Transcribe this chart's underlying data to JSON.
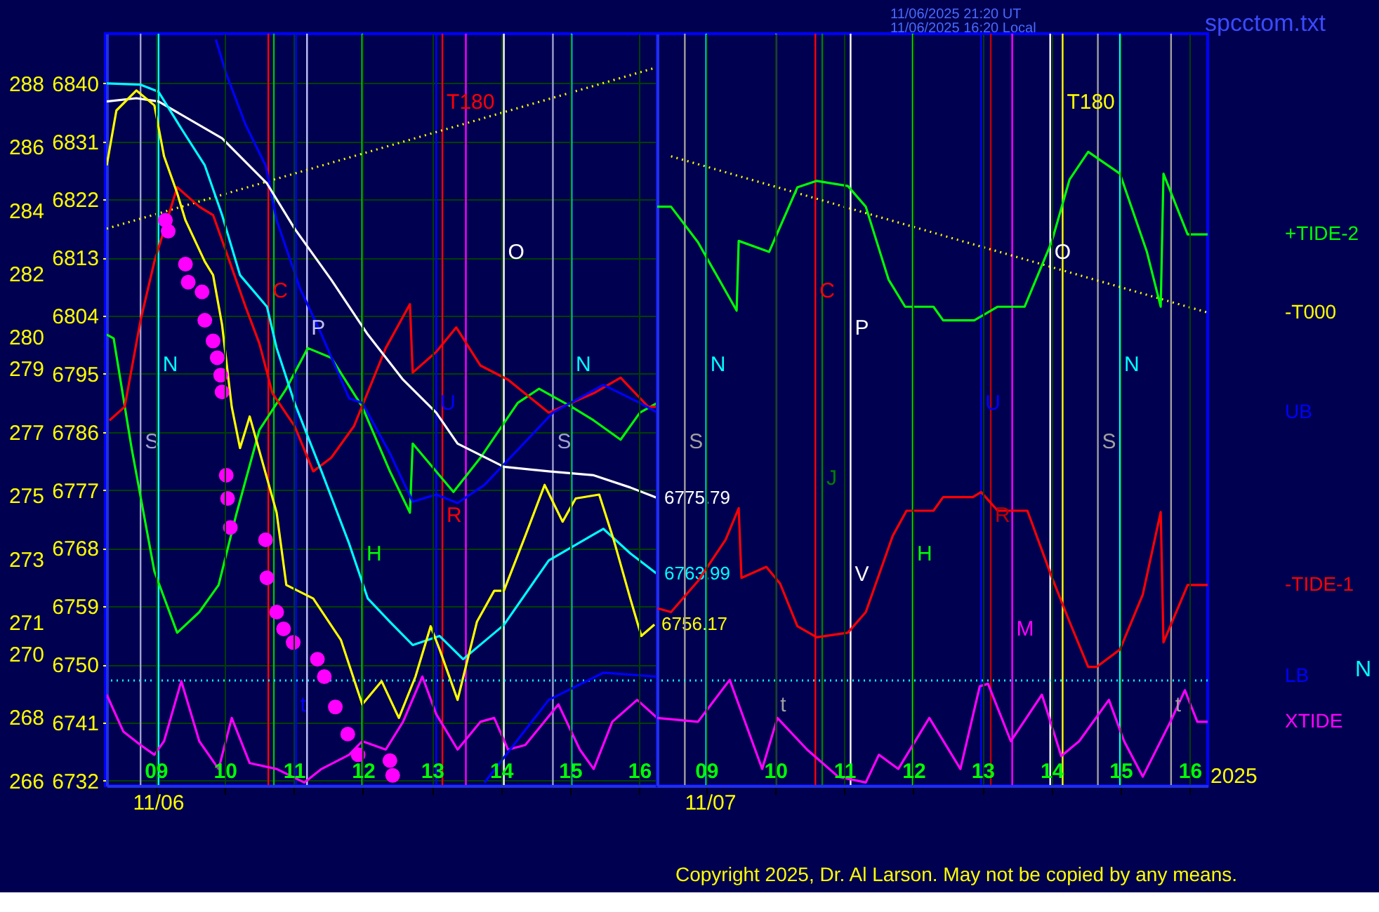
{
  "chart_data": [
    {
      "type": "line",
      "xlim": [
        8.29,
        16.26
      ],
      "ylim": [
        6731.2,
        6847.7
      ],
      "y2lim": [
        265.84,
        289.57
      ],
      "grid": true,
      "marker": "none",
      "xticks": [
        {
          "value": 9,
          "label": "09"
        },
        10,
        11,
        12,
        13,
        14,
        15,
        16
      ],
      "yticks": [
        6840,
        6831,
        6822,
        6813,
        6804,
        6795,
        6786,
        6777,
        6768,
        6759,
        6750,
        6741,
        6732
      ],
      "y2ticks": [
        288,
        286,
        284,
        282,
        280,
        279,
        277,
        275,
        273,
        271,
        270,
        268,
        266
      ],
      "series": [
        {
          "type": "line",
          "color": "#ffff00",
          "line_style": "dotted",
          "x": [
            8.29,
            16.26
          ],
          "values": [
            6817.5,
            6842.5
          ]
        },
        {
          "type": "line",
          "color": "#00ff00",
          "line_style": "solid",
          "x": [
            8.29,
            8.39,
            8.65,
            8.98,
            9.31,
            9.63,
            9.91,
            10.16,
            10.5,
            10.89,
            11.2,
            11.54,
            11.99,
            12.39,
            12.68,
            12.72,
            13.31,
            13.7,
            14.24,
            14.55,
            15.02,
            15.34,
            15.73,
            16.01,
            16.26
          ],
          "values": [
            6801.1,
            6800.5,
            6783.5,
            6764.4,
            6754.9,
            6758.1,
            6762.3,
            6773.0,
            6786.3,
            6792.7,
            6799.0,
            6797.5,
            6789.9,
            6779.9,
            6773.5,
            6784.2,
            6776.7,
            6782.0,
            6790.5,
            6792.7,
            6789.9,
            6787.8,
            6784.8,
            6789.0,
            6790.5
          ]
        },
        {
          "type": "line",
          "color": "#ff0000",
          "line_style": "solid",
          "x": [
            8.33,
            8.55,
            8.78,
            8.98,
            9.31,
            9.63,
            9.83,
            10.02,
            10.3,
            10.5,
            10.69,
            11.01,
            11.28,
            11.54,
            11.87,
            12.33,
            12.68,
            12.72,
            13.06,
            13.35,
            13.7,
            14.1,
            14.69,
            15.34,
            15.73,
            16.13,
            16.26
          ],
          "values": [
            6787.8,
            6789.9,
            6803.3,
            6812.4,
            6823.9,
            6820.9,
            6819.6,
            6813.9,
            6805.4,
            6799.7,
            6792.0,
            6786.9,
            6779.9,
            6782.0,
            6786.9,
            6799.0,
            6805.8,
            6795.2,
            6798.4,
            6802.2,
            6796.3,
            6794.1,
            6789.0,
            6792.0,
            6794.4,
            6789.9,
            6789.9
          ]
        },
        {
          "type": "line",
          "color": "#ff00ff",
          "line_style": "solid",
          "x": [
            8.29,
            8.53,
            8.78,
            8.98,
            9.12,
            9.37,
            9.63,
            9.91,
            10.1,
            10.36,
            10.75,
            11.15,
            11.4,
            11.8,
            11.99,
            12.33,
            12.58,
            12.86,
            13.06,
            13.37,
            13.7,
            13.9,
            14.1,
            14.35,
            14.83,
            15.14,
            15.34,
            15.61,
            15.97,
            16.26
          ],
          "values": [
            6745.3,
            6739.6,
            6737.5,
            6736.0,
            6738.1,
            6747.4,
            6738.1,
            6733.8,
            6741.7,
            6734.7,
            6733.8,
            6731.7,
            6733.8,
            6736.0,
            6738.1,
            6736.8,
            6741.1,
            6748.1,
            6742.3,
            6736.8,
            6741.1,
            6741.7,
            6736.8,
            6737.5,
            6743.8,
            6736.8,
            6733.8,
            6741.1,
            6744.5,
            6741.7
          ]
        },
        {
          "type": "line",
          "name": "UB",
          "color": "#0000ff",
          "line_style": "solid",
          "x": [
            9.87,
            10.02,
            10.3,
            10.59,
            10.75,
            11.09,
            11.4,
            11.8,
            11.99,
            12.39,
            12.72,
            13.06,
            13.37,
            13.76,
            14.75,
            15.48,
            16.01,
            16.26
          ],
          "values": [
            6846.8,
            6841.5,
            6833.6,
            6827.3,
            6818.8,
            6808.2,
            6801.1,
            6791.2,
            6790.5,
            6782.7,
            6775.2,
            6776.3,
            6775.0,
            6777.8,
            6789.0,
            6793.3,
            6790.5,
            6789.0
          ]
        },
        {
          "type": "line",
          "name": "LB",
          "color": "#0000ff",
          "line_style": "solid",
          "x": [
            13.76,
            14.69,
            15.48,
            16.26
          ],
          "values": [
            6731.7,
            6744.5,
            6748.7,
            6748.1
          ]
        },
        {
          "type": "line",
          "color": "#ffffff",
          "line_style": "solid",
          "x": [
            8.29,
            8.72,
            9.04,
            9.96,
            10.61,
            11.01,
            11.54,
            12.07,
            12.58,
            13.06,
            13.37,
            14.04,
            14.69,
            15.34,
            15.87,
            16.26
          ],
          "values": [
            6837.2,
            6837.7,
            6837.2,
            6831.5,
            6824.5,
            6817.5,
            6809.6,
            6801.1,
            6794.1,
            6789.0,
            6784.2,
            6780.6,
            6779.9,
            6779.3,
            6777.4,
            6775.79
          ],
          "value_labels": [
            null,
            null,
            null,
            null,
            null,
            null,
            null,
            null,
            null,
            null,
            null,
            null,
            null,
            null,
            null,
            "6775.79"
          ]
        },
        {
          "type": "line",
          "color": "#00ffff",
          "line_style": "solid",
          "x": [
            8.29,
            8.78,
            9.04,
            9.37,
            9.71,
            9.96,
            10.22,
            10.61,
            10.75,
            11.01,
            11.4,
            11.8,
            12.07,
            12.39,
            12.72,
            13.11,
            13.45,
            14.04,
            14.69,
            15.48,
            15.87,
            16.26
          ],
          "values": [
            6840.0,
            6839.8,
            6838.7,
            6833.0,
            6827.3,
            6819.6,
            6810.3,
            6805.4,
            6799.0,
            6790.5,
            6779.9,
            6768.7,
            6760.2,
            6756.6,
            6753.0,
            6754.4,
            6750.8,
            6756.1,
            6766.1,
            6771.0,
            6767.2,
            6763.99
          ],
          "value_labels": [
            null,
            null,
            null,
            null,
            null,
            null,
            null,
            null,
            null,
            null,
            null,
            null,
            null,
            null,
            null,
            null,
            null,
            null,
            null,
            null,
            null,
            "6763.99"
          ]
        },
        {
          "type": "line",
          "color": "#ffff00",
          "line_style": "solid",
          "x": [
            8.29,
            8.43,
            8.72,
            8.98,
            9.12,
            9.31,
            9.43,
            9.71,
            9.83,
            9.96,
            10.1,
            10.22,
            10.36,
            10.75,
            10.89,
            11.28,
            11.68,
            11.99,
            12.27,
            12.52,
            12.76,
            12.98,
            13.11,
            13.37,
            13.65,
            13.9,
            14.04,
            14.35,
            14.63,
            14.89,
            15.08,
            15.42,
            15.63,
            15.87,
            16.03,
            16.22
          ],
          "values": [
            6827.3,
            6835.8,
            6838.9,
            6836.6,
            6828.7,
            6823.0,
            6818.8,
            6812.4,
            6810.3,
            6802.6,
            6789.9,
            6783.5,
            6788.4,
            6773.5,
            6762.3,
            6760.2,
            6753.8,
            6743.8,
            6747.4,
            6741.7,
            6748.1,
            6755.9,
            6752.3,
            6744.5,
            6756.6,
            6761.4,
            6761.4,
            6769.9,
            6777.8,
            6772.1,
            6775.7,
            6776.3,
            6769.3,
            6760.2,
            6754.4,
            6756.17
          ],
          "value_labels": [
            null,
            null,
            null,
            null,
            null,
            null,
            null,
            null,
            null,
            null,
            null,
            null,
            null,
            null,
            null,
            null,
            null,
            null,
            null,
            null,
            null,
            null,
            null,
            null,
            null,
            null,
            null,
            null,
            null,
            null,
            null,
            null,
            null,
            null,
            null,
            "6756.17"
          ]
        },
        {
          "type": "scatter",
          "color": "#ff00ff",
          "marker": "circle",
          "x": [
            9.14,
            9.18,
            9.43,
            9.47,
            9.67,
            9.71,
            9.83,
            9.89,
            9.94,
            9.96,
            10.02,
            10.04,
            10.08,
            10.59,
            10.61,
            10.75,
            10.85,
            10.99,
            11.34,
            11.44,
            11.6,
            11.78,
            11.93,
            12.39,
            12.43
          ],
          "values": [
            6818.8,
            6817.1,
            6812.0,
            6809.2,
            6807.7,
            6803.3,
            6800.1,
            6797.5,
            6794.8,
            6792.2,
            6779.3,
            6775.7,
            6771.2,
            6769.3,
            6763.4,
            6758.1,
            6755.5,
            6753.4,
            6750.8,
            6748.1,
            6743.4,
            6739.2,
            6736.0,
            6735.1,
            6732.8
          ]
        }
      ],
      "ref_lines": [
        {
          "axis": "x",
          "value": 8.78,
          "color": "#a0a0d0"
        },
        {
          "axis": "x",
          "value": 9.04,
          "color": "#00ffff"
        },
        {
          "axis": "x",
          "value": 10.63,
          "color": "#ff0000"
        },
        {
          "axis": "x",
          "value": 10.71,
          "color": "#00c000"
        },
        {
          "axis": "x",
          "value": 11.03,
          "color": "#0000ff"
        },
        {
          "axis": "x",
          "value": 11.19,
          "color": "#c0c0ff"
        },
        {
          "axis": "x",
          "value": 11.99,
          "color": "#00ff00"
        },
        {
          "axis": "x",
          "value": 13.06,
          "color": "#0000ff"
        },
        {
          "axis": "x",
          "value": 13.15,
          "color": "#ff0000"
        },
        {
          "axis": "x",
          "value": 13.49,
          "color": "#ff00ff"
        },
        {
          "axis": "x",
          "value": 14.04,
          "color": "#ffffff"
        },
        {
          "axis": "x",
          "value": 14.75,
          "color": "#a0a0d0"
        },
        {
          "axis": "x",
          "value": 15.02,
          "color": "#00ffff"
        },
        {
          "axis": "y",
          "value": 6747.5,
          "color": "#00ffff",
          "line_style": "dotted"
        }
      ],
      "annotations": [
        {
          "text": "N",
          "x": 9.04,
          "y": 6796.5
        },
        {
          "text": "N",
          "x": 15.02,
          "y": 6796.5
        },
        {
          "text": "S",
          "x": 8.78,
          "y": 6784.6
        },
        {
          "text": "S",
          "x": 14.75,
          "y": 6784.6
        },
        {
          "text": "C",
          "x": 10.63,
          "y": 6807.9
        },
        {
          "text": "P",
          "x": 11.19,
          "y": 6802.2
        },
        {
          "text": "H",
          "x": 11.99,
          "y": 6767.2
        },
        {
          "text": "U",
          "x": 13.06,
          "y": 6790.5
        },
        {
          "text": "R",
          "x": 13.15,
          "y": 6773.1
        },
        {
          "text": "O",
          "x": 14.04,
          "y": 6813.9
        },
        {
          "text": "t",
          "x": 11.03,
          "y": 6743.8
        },
        {
          "text": "T180",
          "x": 13.15,
          "y": 6837.2
        },
        "11/06",
        "11/06/2025 21:20 UT",
        "11/06/2025 16:20 Local",
        "spcctom.txt",
        "Copyright 2025, Dr. Al Larson. May not be copied by any means."
      ]
    },
    {
      "type": "line",
      "xlim": [
        8.29,
        16.26
      ],
      "ylim": [
        6731.2,
        6847.7
      ],
      "grid": true,
      "marker": "none",
      "tick_labels": "x",
      "xticks": [
        {
          "value": 9,
          "label": "09"
        },
        10,
        11,
        12,
        13,
        14,
        15,
        16
      ],
      "series": [
        {
          "type": "line",
          "name": "-T000",
          "color": "#ffff00",
          "line_style": "dotted",
          "x": [
            8.49,
            16.26
          ],
          "values": [
            6828.7,
            6804.5
          ]
        },
        {
          "type": "line",
          "name": "+TIDE-2",
          "color": "#00ff00",
          "line_style": "solid",
          "x": [
            8.29,
            8.49,
            8.88,
            9.44,
            9.47,
            9.91,
            10.32,
            10.6,
            11.05,
            11.31,
            11.64,
            11.88,
            12.29,
            12.43,
            12.88,
            13.22,
            13.61,
            14.0,
            14.26,
            14.53,
            14.99,
            15.38,
            15.58,
            15.62,
            15.97,
            16.26
          ],
          "values": [
            6820.9,
            6820.9,
            6815.4,
            6804.8,
            6815.6,
            6813.9,
            6823.9,
            6824.9,
            6824.1,
            6820.9,
            6809.6,
            6805.4,
            6805.4,
            6803.3,
            6803.3,
            6805.4,
            6805.4,
            6815.4,
            6825.1,
            6829.4,
            6826.0,
            6813.9,
            6805.4,
            6826.0,
            6816.6,
            6816.6
          ]
        },
        {
          "type": "line",
          "name": "-TIDE-1",
          "color": "#ff0000",
          "line_style": "solid",
          "x": [
            8.29,
            8.49,
            8.88,
            9.28,
            9.47,
            9.51,
            9.87,
            10.07,
            10.32,
            10.6,
            11.05,
            11.31,
            11.7,
            11.9,
            12.29,
            12.43,
            12.86,
            12.98,
            13.22,
            13.65,
            14.0,
            14.26,
            14.53,
            14.65,
            14.99,
            15.32,
            15.58,
            15.62,
            15.97,
            16.26
          ],
          "values": [
            6758.7,
            6758.1,
            6762.9,
            6769.3,
            6774.2,
            6763.4,
            6765.1,
            6762.5,
            6755.9,
            6754.2,
            6754.9,
            6758.1,
            6769.9,
            6773.8,
            6773.8,
            6775.9,
            6775.9,
            6776.7,
            6773.8,
            6773.8,
            6763.6,
            6756.6,
            6749.6,
            6749.6,
            6752.3,
            6760.8,
            6773.6,
            6753.4,
            6762.3,
            6762.3
          ]
        },
        {
          "type": "line",
          "name": "XTIDE",
          "color": "#ff00ff",
          "line_style": "solid",
          "x": [
            8.29,
            8.88,
            9.34,
            9.81,
            10.03,
            10.46,
            10.91,
            11.31,
            11.5,
            11.78,
            12.23,
            12.68,
            12.96,
            13.08,
            13.41,
            13.86,
            14.14,
            14.4,
            14.83,
            15.05,
            15.32,
            15.72,
            15.93,
            16.11,
            16.26
          ],
          "values": [
            6741.7,
            6741.1,
            6747.6,
            6733.8,
            6741.7,
            6736.8,
            6732.6,
            6731.7,
            6736.0,
            6733.8,
            6741.7,
            6733.8,
            6746.6,
            6747.0,
            6738.1,
            6745.3,
            6735.8,
            6738.1,
            6744.5,
            6738.1,
            6732.6,
            6741.1,
            6746.0,
            6741.1,
            6741.1
          ]
        }
      ],
      "ref_lines": [
        {
          "axis": "x",
          "value": 8.69,
          "color": "#a0a0a0"
        },
        {
          "axis": "x",
          "value": 9.0,
          "color": "#00ffff"
        },
        {
          "axis": "x",
          "value": 10.01,
          "color": "#a0a0a0"
        },
        {
          "axis": "x",
          "value": 10.58,
          "color": "#ff0000"
        },
        {
          "axis": "x",
          "value": 10.68,
          "color": "#008000"
        },
        {
          "axis": "x",
          "value": 11.09,
          "color": "#ffffff"
        },
        {
          "axis": "x",
          "value": 11.99,
          "color": "#00ff00"
        },
        {
          "axis": "x",
          "value": 12.98,
          "color": "#0000ff"
        },
        {
          "axis": "x",
          "value": 13.12,
          "color": "#c00000"
        },
        {
          "axis": "x",
          "value": 13.43,
          "color": "#ff00ff"
        },
        {
          "axis": "x",
          "value": 13.98,
          "color": "#ffffff"
        },
        {
          "axis": "x",
          "value": 14.16,
          "color": "#ffff00"
        },
        {
          "axis": "x",
          "value": 14.67,
          "color": "#a0a0a0"
        },
        {
          "axis": "x",
          "value": 14.99,
          "color": "#00ffff"
        },
        {
          "axis": "x",
          "value": 15.73,
          "color": "#a0a0a0"
        },
        {
          "axis": "y",
          "value": 6747.5,
          "color": "#00ffff",
          "line_style": "dotted",
          "label": "N"
        }
      ],
      "annotations": [
        {
          "text": "N",
          "x": 9.0,
          "y": 6796.5
        },
        {
          "text": "N",
          "x": 14.99,
          "y": 6796.5
        },
        {
          "text": "S",
          "x": 8.69,
          "y": 6784.6
        },
        {
          "text": "S",
          "x": 14.67,
          "y": 6784.6
        },
        {
          "text": "C",
          "x": 10.58,
          "y": 6807.9
        },
        {
          "text": "P",
          "x": 11.09,
          "y": 6802.2
        },
        {
          "text": "V",
          "x": 11.09,
          "y": 6764.0
        },
        {
          "text": "J",
          "x": 10.68,
          "y": 6778.9
        },
        {
          "text": "H",
          "x": 11.99,
          "y": 6767.2
        },
        {
          "text": "U",
          "x": 12.98,
          "y": 6790.5
        },
        {
          "text": "R",
          "x": 13.12,
          "y": 6773.1
        },
        {
          "text": "M",
          "x": 13.43,
          "y": 6755.5
        },
        {
          "text": "O",
          "x": 13.98,
          "y": 6813.9
        },
        {
          "text": "T180",
          "x": 14.16,
          "y": 6837.2
        },
        {
          "text": "t",
          "x": 10.01,
          "y": 6743.8
        },
        {
          "text": "t",
          "x": 15.73,
          "y": 6743.8
        },
        "11/07",
        "2025"
      ]
    }
  ]
}
